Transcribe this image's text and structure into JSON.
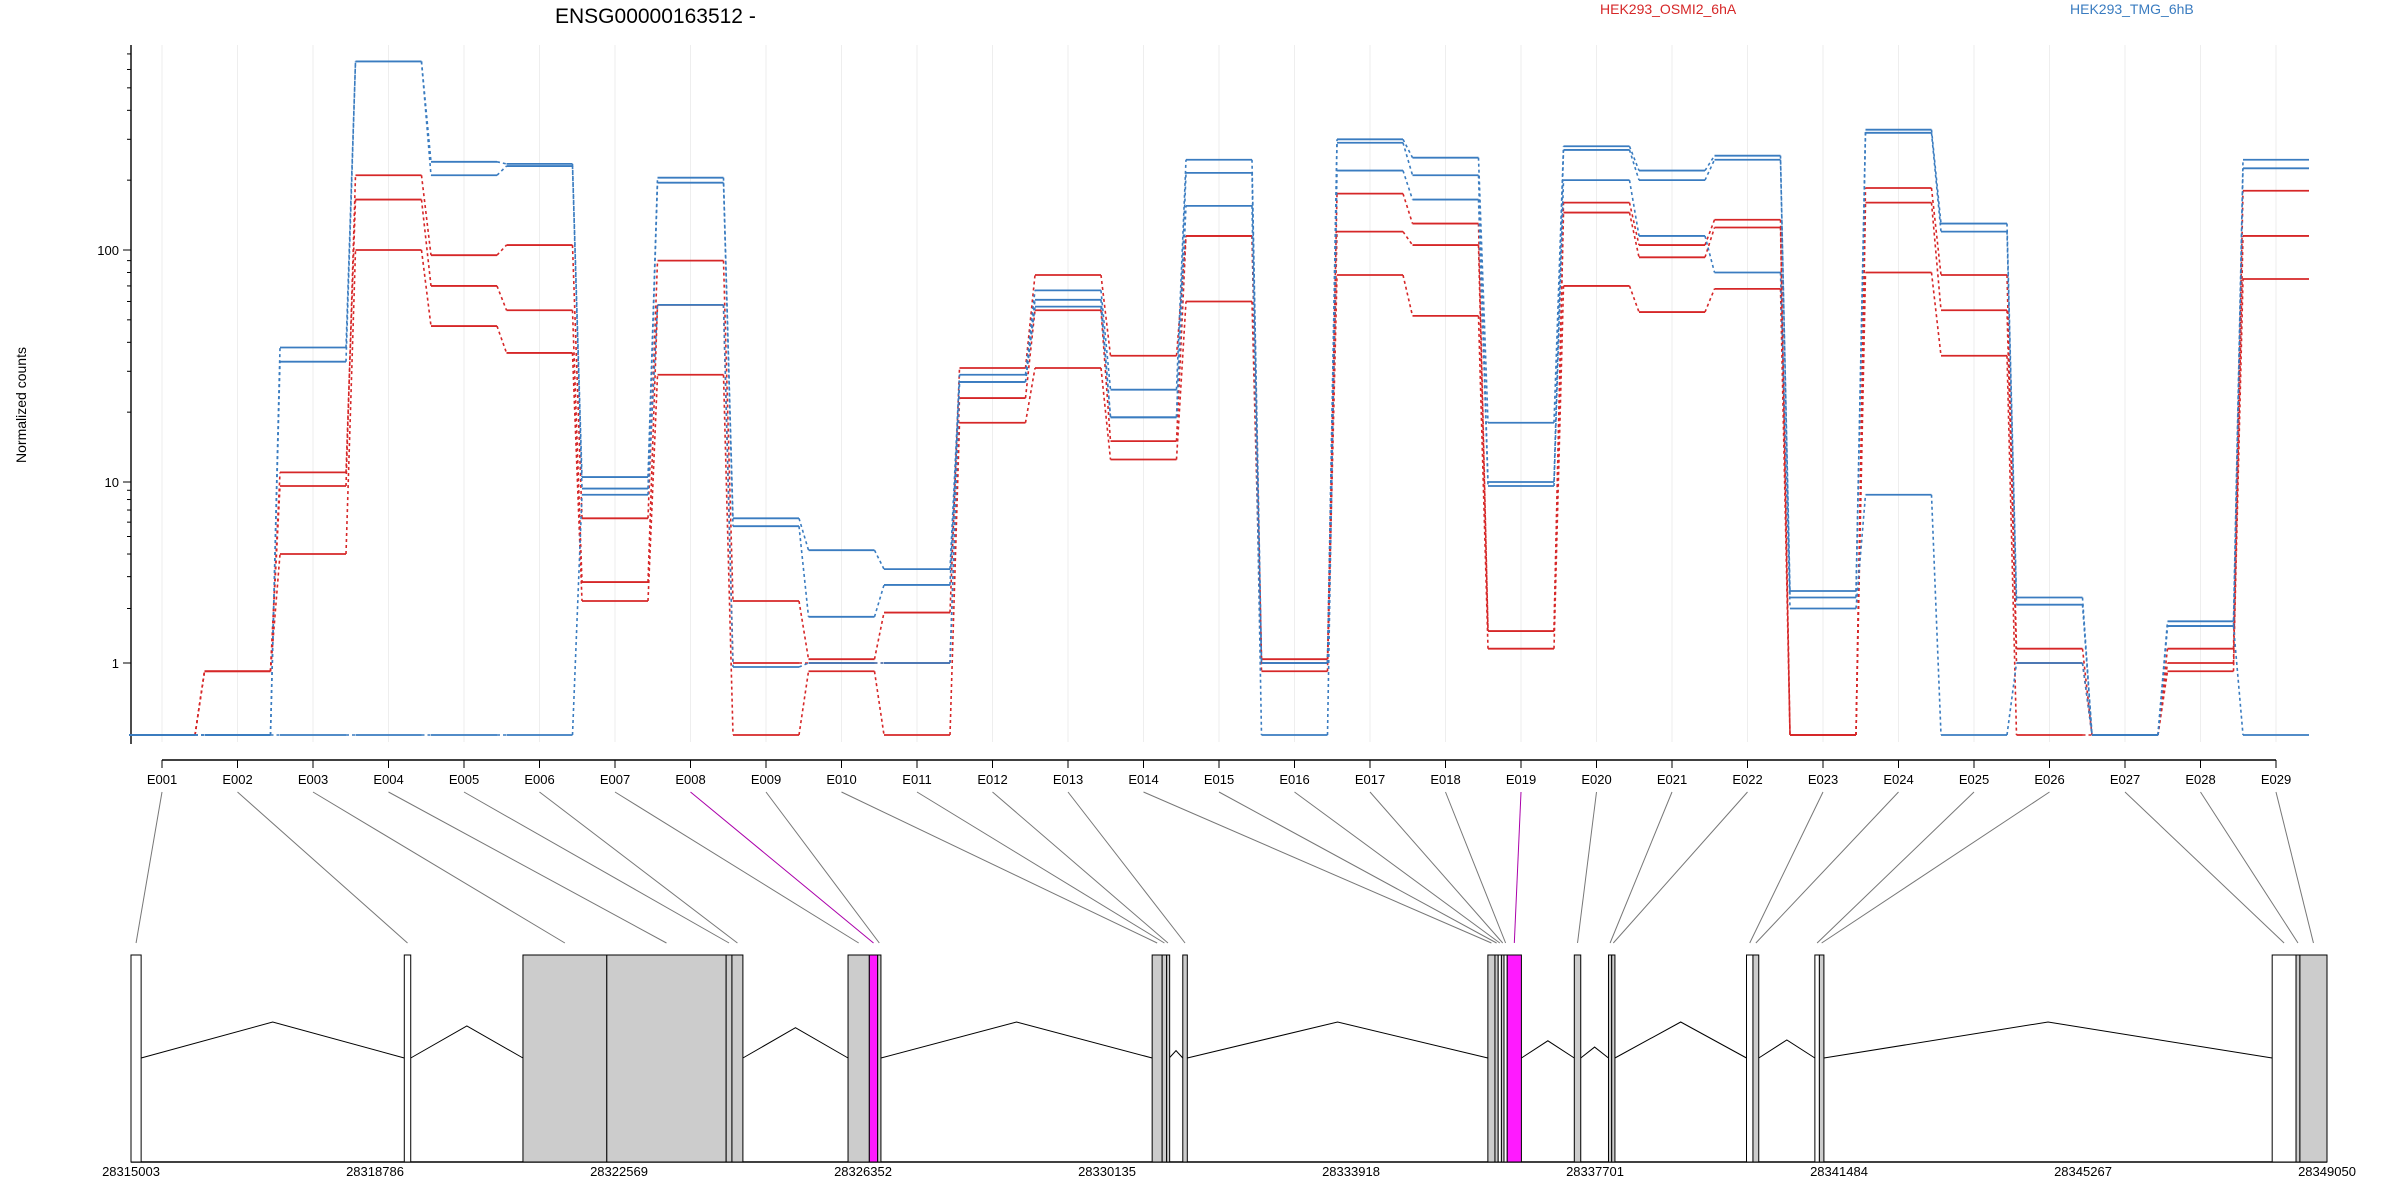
{
  "chart_data": {
    "type": "line",
    "title": "ENSG00000163512 -",
    "ylabel": "Normalized counts",
    "yscale": "log",
    "y_floor_value": 0.5,
    "yticks": [
      1,
      10,
      100
    ],
    "ytick_labels": [
      "1",
      "10",
      "100"
    ],
    "categories": [
      "E001",
      "E002",
      "E003",
      "E004",
      "E005",
      "E006",
      "E007",
      "E008",
      "E009",
      "E010",
      "E011",
      "E012",
      "E013",
      "E014",
      "E015",
      "E016",
      "E017",
      "E018",
      "E019",
      "E020",
      "E021",
      "E022",
      "E023",
      "E024",
      "E025",
      "E026",
      "E027",
      "E028",
      "E029"
    ],
    "highlighted_exons": [
      "E008",
      "E019"
    ],
    "legend": [
      {
        "label": "HEK293_OSMI2_6hA",
        "color": "#d62728"
      },
      {
        "label": "HEK293_TMG_6hB",
        "color": "#3a7cc0"
      }
    ],
    "series": [
      {
        "group": "HEK293_OSMI2_6hA",
        "color": "#d62728",
        "values": [
          0.5,
          0.9,
          9.5,
          210,
          95,
          105,
          6.3,
          90,
          2.2,
          1.05,
          1.9,
          31,
          78,
          35,
          115,
          1.05,
          175,
          130,
          1.5,
          160,
          105,
          135,
          0.5,
          185,
          78,
          1.2,
          0.5,
          1.2,
          180
        ]
      },
      {
        "group": "HEK293_OSMI2_6hA",
        "color": "#d62728",
        "values": [
          0.5,
          0.9,
          11,
          165,
          70,
          55,
          2.8,
          58,
          1.0,
          1.0,
          1.0,
          23,
          55,
          15,
          115,
          1.0,
          120,
          105,
          1.5,
          145,
          93,
          125,
          0.5,
          160,
          55,
          1.0,
          0.5,
          1.0,
          115
        ]
      },
      {
        "group": "HEK293_OSMI2_6hA",
        "color": "#d62728",
        "values": [
          0.5,
          0.9,
          4.0,
          100,
          47,
          36,
          2.2,
          29,
          0.5,
          0.9,
          0.5,
          18,
          31,
          12.5,
          60,
          0.9,
          78,
          52,
          1.2,
          70,
          54,
          68,
          0.5,
          80,
          35,
          0.5,
          0.5,
          0.9,
          75
        ]
      },
      {
        "group": "HEK293_TMG_6hB",
        "color": "#3a7cc0",
        "values": [
          0.5,
          0.5,
          38,
          650,
          240,
          235,
          10.5,
          205,
          6.3,
          4.2,
          3.3,
          29,
          67,
          25,
          245,
          1.0,
          300,
          250,
          18,
          280,
          220,
          255,
          2.5,
          330,
          130,
          2.3,
          0.5,
          1.7,
          245
        ]
      },
      {
        "group": "HEK293_TMG_6hB",
        "color": "#3a7cc0",
        "values": [
          0.5,
          0.5,
          33,
          650,
          210,
          230,
          9.2,
          195,
          5.7,
          1.8,
          2.7,
          27,
          61,
          19,
          215,
          1.0,
          290,
          210,
          10,
          270,
          200,
          245,
          2.3,
          320,
          120,
          2.1,
          0.5,
          1.6,
          225
        ]
      },
      {
        "group": "HEK293_TMG_6hB",
        "color": "#3a7cc0",
        "values": [
          0.5,
          0.5,
          0.5,
          0.5,
          0.5,
          0.5,
          8.5,
          58,
          0.95,
          1.0,
          1.0,
          27,
          57,
          19,
          155,
          0.5,
          220,
          165,
          9.5,
          200,
          115,
          80,
          2.0,
          8.5,
          0.5,
          1.0,
          0.5,
          1.6,
          0.5
        ]
      }
    ],
    "gene_model": {
      "start": 28315003,
      "end": 28349050,
      "axis_ticks": [
        28315003,
        28318786,
        28322569,
        28326352,
        28330135,
        28333918,
        28337701,
        28341484,
        28345267,
        28349050
      ],
      "exons": [
        {
          "id": "E001",
          "start": 28315003,
          "end": 28315160,
          "highlight": false,
          "fill": "#ffffff"
        },
        {
          "id": "E002",
          "start": 28319240,
          "end": 28319340,
          "highlight": false,
          "fill": "#ffffff"
        },
        {
          "id": "E003",
          "start": 28321080,
          "end": 28322380,
          "highlight": false,
          "fill": "#cccccc"
        },
        {
          "id": "E004",
          "start": 28322380,
          "end": 28324230,
          "highlight": false,
          "fill": "#cccccc"
        },
        {
          "id": "E005",
          "start": 28324230,
          "end": 28324320,
          "highlight": false,
          "fill": "#cccccc"
        },
        {
          "id": "E006",
          "start": 28324320,
          "end": 28324490,
          "highlight": false,
          "fill": "#cccccc"
        },
        {
          "id": "E007",
          "start": 28326120,
          "end": 28326450,
          "highlight": false,
          "fill": "#cccccc"
        },
        {
          "id": "E008",
          "start": 28326450,
          "end": 28326580,
          "highlight": true,
          "fill": "#ff1aff"
        },
        {
          "id": "E009",
          "start": 28326580,
          "end": 28326630,
          "highlight": false,
          "fill": "#cccccc"
        },
        {
          "id": "E010",
          "start": 28330835,
          "end": 28330990,
          "highlight": false,
          "fill": "#cccccc"
        },
        {
          "id": "E011",
          "start": 28330990,
          "end": 28331060,
          "highlight": false,
          "fill": "#cccccc"
        },
        {
          "id": "E012",
          "start": 28331060,
          "end": 28331100,
          "highlight": false,
          "fill": "#cccccc"
        },
        {
          "id": "E013",
          "start": 28331310,
          "end": 28331380,
          "highlight": false,
          "fill": "#cccccc"
        },
        {
          "id": "E014",
          "start": 28336040,
          "end": 28336150,
          "highlight": false,
          "fill": "#cccccc"
        },
        {
          "id": "E015",
          "start": 28336150,
          "end": 28336200,
          "highlight": false,
          "fill": "#cccccc"
        },
        {
          "id": "E016",
          "start": 28336200,
          "end": 28336250,
          "highlight": false,
          "fill": "#ffffff"
        },
        {
          "id": "E017",
          "start": 28336250,
          "end": 28336290,
          "highlight": false,
          "fill": "#cccccc"
        },
        {
          "id": "E018",
          "start": 28336290,
          "end": 28336340,
          "highlight": false,
          "fill": "#ffffff"
        },
        {
          "id": "E019",
          "start": 28336340,
          "end": 28336560,
          "highlight": true,
          "fill": "#ff1aff"
        },
        {
          "id": "E020",
          "start": 28337380,
          "end": 28337480,
          "highlight": false,
          "fill": "#cccccc"
        },
        {
          "id": "E021",
          "start": 28337910,
          "end": 28337960,
          "highlight": false,
          "fill": "#cccccc"
        },
        {
          "id": "E022",
          "start": 28337960,
          "end": 28338010,
          "highlight": false,
          "fill": "#cccccc"
        },
        {
          "id": "E023",
          "start": 28340050,
          "end": 28340150,
          "highlight": false,
          "fill": "#ffffff"
        },
        {
          "id": "E024",
          "start": 28340150,
          "end": 28340240,
          "highlight": false,
          "fill": "#cccccc"
        },
        {
          "id": "E025",
          "start": 28341110,
          "end": 28341180,
          "highlight": false,
          "fill": "#ffffff"
        },
        {
          "id": "E026",
          "start": 28341180,
          "end": 28341250,
          "highlight": false,
          "fill": "#cccccc"
        },
        {
          "id": "E027",
          "start": 28348200,
          "end": 28348570,
          "highlight": false,
          "fill": "#ffffff"
        },
        {
          "id": "E028",
          "start": 28348570,
          "end": 28348630,
          "highlight": false,
          "fill": "#cccccc"
        },
        {
          "id": "E029",
          "start": 28348630,
          "end": 28349050,
          "highlight": false,
          "fill": "#cccccc"
        }
      ],
      "blocks": [
        {
          "start": 28315003,
          "end": 28315160
        },
        {
          "start": 28319240,
          "end": 28319340
        },
        {
          "start": 28321080,
          "end": 28324490
        },
        {
          "start": 28326120,
          "end": 28326630
        },
        {
          "start": 28330835,
          "end": 28331100
        },
        {
          "start": 28331310,
          "end": 28331380
        },
        {
          "start": 28336040,
          "end": 28336560
        },
        {
          "start": 28337380,
          "end": 28337480
        },
        {
          "start": 28337910,
          "end": 28338010
        },
        {
          "start": 28340050,
          "end": 28340240
        },
        {
          "start": 28341110,
          "end": 28341250
        },
        {
          "start": 28348200,
          "end": 28349050
        }
      ]
    }
  }
}
